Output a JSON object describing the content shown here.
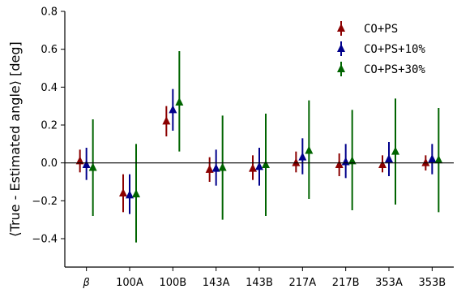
{
  "chart_data": {
    "type": "scatter",
    "subtype": "errorbar",
    "ylabel": "⟨True - Estimated angle⟩ [deg]",
    "xlabel": "",
    "categories": [
      "β",
      "100A",
      "100B",
      "143A",
      "143B",
      "217A",
      "217B",
      "353A",
      "353B"
    ],
    "ylim": [
      -0.55,
      0.8
    ],
    "yticks": [
      -0.4,
      -0.2,
      0.0,
      0.2,
      0.4,
      0.6,
      0.8
    ],
    "ytick_labels": [
      "−0.4",
      "−0.2",
      "0.0",
      "0.2",
      "0.4",
      "0.6",
      "0.8"
    ],
    "zero_line": true,
    "grid": false,
    "legend_position": "top-right",
    "marker": "triangle-up",
    "series": [
      {
        "name": "CO+PS",
        "color": "#8b0000",
        "values": [
          0.01,
          -0.16,
          0.22,
          -0.035,
          -0.03,
          0.0,
          -0.01,
          -0.01,
          0.0
        ],
        "lower": [
          -0.05,
          -0.26,
          0.14,
          -0.1,
          -0.09,
          -0.05,
          -0.07,
          -0.05,
          -0.04
        ],
        "upper": [
          0.07,
          -0.06,
          0.3,
          0.03,
          0.04,
          0.06,
          0.05,
          0.04,
          0.04
        ]
      },
      {
        "name": "CO+PS+10%",
        "color": "#00008b",
        "values": [
          -0.01,
          -0.17,
          0.28,
          -0.03,
          -0.02,
          0.03,
          0.005,
          0.02,
          0.02
        ],
        "lower": [
          -0.09,
          -0.27,
          0.17,
          -0.12,
          -0.12,
          -0.06,
          -0.08,
          -0.07,
          -0.06
        ],
        "upper": [
          0.08,
          -0.06,
          0.39,
          0.07,
          0.08,
          0.13,
          0.1,
          0.11,
          0.1
        ]
      },
      {
        "name": "CO+PS+30%",
        "color": "#006400",
        "values": [
          -0.025,
          -0.165,
          0.32,
          -0.025,
          -0.01,
          0.065,
          0.01,
          0.06,
          0.015
        ],
        "lower": [
          -0.28,
          -0.42,
          0.06,
          -0.3,
          -0.28,
          -0.19,
          -0.25,
          -0.22,
          -0.26
        ],
        "upper": [
          0.23,
          0.1,
          0.59,
          0.25,
          0.26,
          0.33,
          0.28,
          0.34,
          0.29
        ]
      }
    ]
  }
}
